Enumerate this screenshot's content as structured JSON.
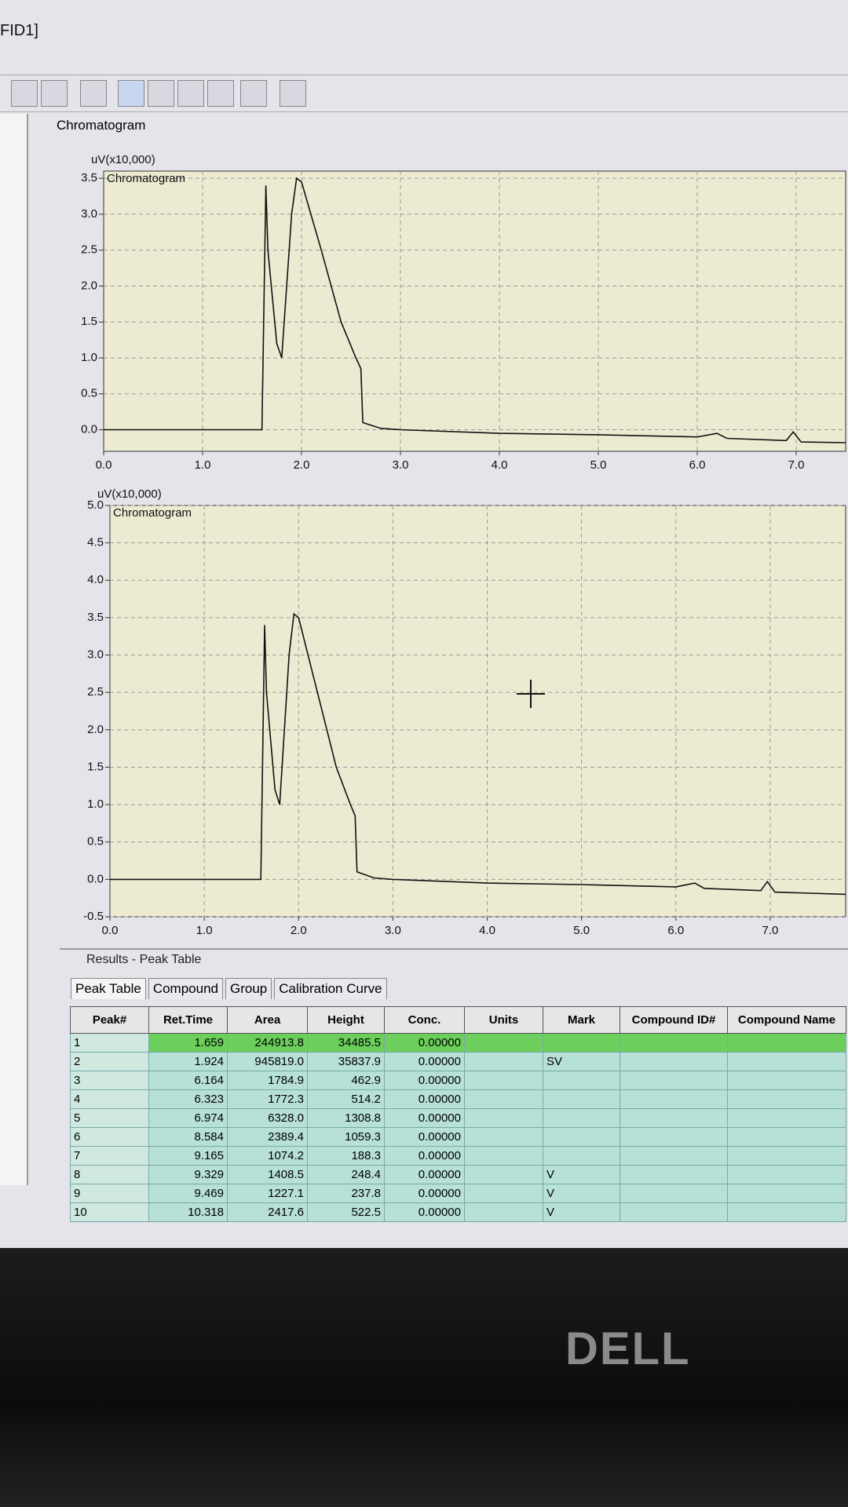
{
  "window_title": "FID1]",
  "panel_title": "Chromatogram",
  "chart_data": [
    {
      "type": "line",
      "axis_title": "uV(x10,000)",
      "label": "Chromatogram",
      "color": "#111111",
      "grid": true,
      "x": [
        0.0,
        1.6,
        1.64,
        1.66,
        1.75,
        1.8,
        1.9,
        1.95,
        2.0,
        2.2,
        2.4,
        2.55,
        2.6,
        2.62,
        2.8,
        3.0,
        4.0,
        5.0,
        6.0,
        6.2,
        6.3,
        6.9,
        6.97,
        7.05,
        7.5
      ],
      "values": [
        0.0,
        0.0,
        3.4,
        2.5,
        1.2,
        1.0,
        3.0,
        3.5,
        3.45,
        2.5,
        1.5,
        1.0,
        0.85,
        0.1,
        0.02,
        0.0,
        -0.05,
        -0.07,
        -0.1,
        -0.05,
        -0.12,
        -0.15,
        -0.03,
        -0.17,
        -0.18
      ],
      "xlim": [
        0,
        7.5
      ],
      "ylim": [
        -0.3,
        3.6
      ],
      "xticks": [
        {
          "value": 0,
          "label": "0.0"
        },
        {
          "value": 1,
          "label": "1.0"
        },
        {
          "value": 2,
          "label": "2.0"
        },
        {
          "value": 3,
          "label": "3.0"
        },
        {
          "value": 4,
          "label": "4.0"
        },
        {
          "value": 5,
          "label": "5.0"
        },
        {
          "value": 6,
          "label": "6.0"
        },
        {
          "value": 7,
          "label": "7.0"
        }
      ],
      "yticks": [
        {
          "value": 0,
          "label": "0.0"
        },
        0.5,
        {
          "value": 1,
          "label": "1.0"
        },
        1.5,
        {
          "value": 2,
          "label": "2.0"
        },
        2.5,
        {
          "value": 3,
          "label": "3.0"
        },
        3.5
      ]
    },
    {
      "type": "line",
      "axis_title": "uV(x10,000)",
      "label": "Chromatogram",
      "color": "#111111",
      "grid": true,
      "x": [
        0.0,
        1.6,
        1.64,
        1.66,
        1.75,
        1.8,
        1.9,
        1.95,
        2.0,
        2.2,
        2.4,
        2.55,
        2.6,
        2.62,
        2.8,
        3.0,
        4.0,
        5.0,
        6.0,
        6.2,
        6.3,
        6.9,
        6.97,
        7.05,
        7.8
      ],
      "values": [
        0.0,
        0.0,
        3.4,
        2.5,
        1.2,
        1.0,
        3.0,
        3.55,
        3.5,
        2.5,
        1.5,
        1.0,
        0.85,
        0.1,
        0.02,
        0.0,
        -0.05,
        -0.07,
        -0.1,
        -0.05,
        -0.12,
        -0.15,
        -0.03,
        -0.17,
        -0.2
      ],
      "xlim": [
        0,
        7.8
      ],
      "ylim": [
        -0.5,
        5.0
      ],
      "xticks": [
        {
          "value": 0,
          "label": "0.0"
        },
        {
          "value": 1,
          "label": "1.0"
        },
        {
          "value": 2,
          "label": "2.0"
        },
        {
          "value": 3,
          "label": "3.0"
        },
        {
          "value": 4,
          "label": "4.0"
        },
        {
          "value": 5,
          "label": "5.0"
        },
        {
          "value": 6,
          "label": "6.0"
        },
        {
          "value": 7,
          "label": "7.0"
        }
      ],
      "yticks": [
        -0.5,
        {
          "value": 0,
          "label": "0.0"
        },
        0.5,
        {
          "value": 1,
          "label": "1.0"
        },
        1.5,
        {
          "value": 2,
          "label": "2.0"
        },
        2.5,
        {
          "value": 3,
          "label": "3.0"
        },
        3.5,
        {
          "value": 4,
          "label": "4.0"
        },
        4.5,
        {
          "value": 5,
          "label": "5.0"
        }
      ]
    }
  ],
  "results": {
    "title": "Results - Peak Table",
    "tabs": [
      "Peak Table",
      "Compound",
      "Group",
      "Calibration Curve"
    ],
    "table": {
      "headers": [
        "Peak#",
        "Ret.Time",
        "Area",
        "Height",
        "Conc.",
        "Units",
        "Mark",
        "Compound ID#",
        "Compound Name"
      ],
      "rows": [
        [
          "1",
          "1.659",
          "244913.8",
          "34485.5",
          "0.00000",
          null,
          null,
          null,
          null
        ],
        [
          "2",
          "1.924",
          "945819.0",
          "35837.9",
          "0.00000",
          null,
          "SV",
          null,
          null
        ],
        [
          "3",
          "6.164",
          "1784.9",
          "462.9",
          "0.00000",
          null,
          null,
          null,
          null
        ],
        [
          "4",
          "6.323",
          "1772.3",
          "514.2",
          "0.00000",
          null,
          null,
          null,
          null
        ],
        [
          "5",
          "6.974",
          "6328.0",
          "1308.8",
          "0.00000",
          null,
          null,
          null,
          null
        ],
        [
          "6",
          "8.584",
          "2389.4",
          "1059.3",
          "0.00000",
          null,
          null,
          null,
          null
        ],
        [
          "7",
          "9.165",
          "1074.2",
          "188.3",
          "0.00000",
          null,
          null,
          null,
          null
        ],
        [
          "8",
          "9.329",
          "1408.5",
          "248.4",
          "0.00000",
          null,
          "V",
          null,
          null
        ],
        [
          "9",
          "9.469",
          "1227.1",
          "237.8",
          "0.00000",
          null,
          "V",
          null,
          null
        ],
        [
          "10",
          "10.318",
          "2417.6",
          "522.5",
          "0.00000",
          null,
          "V",
          null,
          null
        ]
      ]
    }
  },
  "bezel_brand": "DELL"
}
